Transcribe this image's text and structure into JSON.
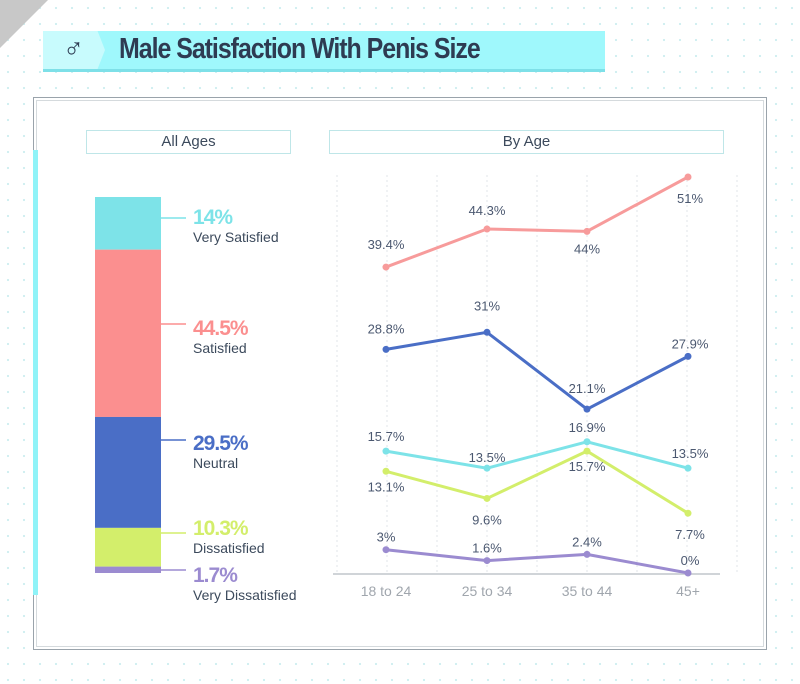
{
  "header": {
    "title": "Male Satisfaction With Penis Size",
    "icon": "male-symbol-icon",
    "icon_glyph": "♂"
  },
  "panels": {
    "left_title": "All Ages",
    "right_title": "By Age"
  },
  "chart_data": [
    {
      "type": "bar",
      "stacked": true,
      "title": "All Ages",
      "categories": [
        "Very Satisfied",
        "Satisfied",
        "Neutral",
        "Dissatisfied",
        "Very Dissatisfied"
      ],
      "values": [
        14,
        44.5,
        29.5,
        10.3,
        1.7
      ],
      "value_labels": [
        "14%",
        "44.5%",
        "29.5%",
        "10.3%",
        "1.7%"
      ],
      "colors": [
        "#7de3e8",
        "#fb8f8f",
        "#4a6ec6",
        "#d3ee6b",
        "#9b8bd0"
      ]
    },
    {
      "type": "line",
      "title": "By Age",
      "categories": [
        "18 to 24",
        "25 to 34",
        "35 to 44",
        "45+"
      ],
      "ylim": [
        0,
        51
      ],
      "grid": "vertical dashed",
      "series": [
        {
          "name": "Satisfied",
          "color": "#f79b9b",
          "values": [
            39.4,
            44.3,
            44,
            51
          ],
          "labels": [
            "39.4%",
            "44.3%",
            "44%",
            "51%"
          ]
        },
        {
          "name": "Neutral",
          "color": "#4a6ec6",
          "values": [
            28.8,
            31,
            21.1,
            27.9
          ],
          "labels": [
            "28.8%",
            "31%",
            "21.1%",
            "27.9%"
          ]
        },
        {
          "name": "Very Satisfied",
          "color": "#7de3e8",
          "values": [
            15.7,
            13.5,
            16.9,
            13.5
          ],
          "labels": [
            "15.7%",
            "13.5%",
            "16.9%",
            "13.5%"
          ]
        },
        {
          "name": "Dissatisfied",
          "color": "#d3ee6b",
          "values": [
            13.1,
            9.6,
            15.7,
            7.7
          ],
          "labels": [
            "13.1%",
            "9.6%",
            "15.7%",
            "7.7%"
          ]
        },
        {
          "name": "Very Dissatisfied",
          "color": "#9b8bd0",
          "values": [
            3,
            1.6,
            2.4,
            0
          ],
          "labels": [
            "3%",
            "1.6%",
            "2.4%",
            "0%"
          ]
        }
      ]
    }
  ]
}
